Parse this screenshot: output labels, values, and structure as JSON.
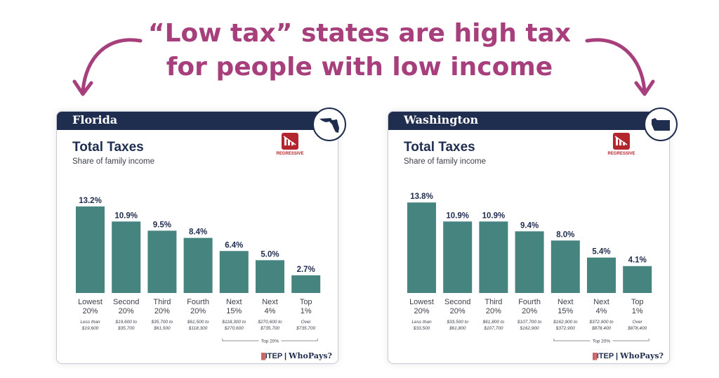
{
  "headline": {
    "line1": "“Low tax” states are high tax",
    "line2": "for people with low income"
  },
  "colors": {
    "headline": "#a63f7c",
    "bar": "#45847f",
    "header_bg": "#1f2d4e",
    "regressive": "#b3262e"
  },
  "icons": [
    "arrow-left-icon",
    "arrow-right-icon",
    "state-map-icon",
    "regressive-icon"
  ],
  "cards": [
    {
      "state": "Florida",
      "title": "Total Taxes",
      "subtitle": "Share of family income",
      "regressive_label": "REGRESSIVE",
      "top20_label": "Top 20%",
      "brand_itep": "ITEP",
      "brand_whopays": "WhoPays?"
    },
    {
      "state": "Washington",
      "title": "Total Taxes",
      "subtitle": "Share of family income",
      "regressive_label": "REGRESSIVE",
      "top20_label": "Top 20%",
      "brand_itep": "ITEP",
      "brand_whopays": "WhoPays?"
    }
  ],
  "chart_data": [
    {
      "type": "bar",
      "title": "Total Taxes",
      "subtitle": "Share of family income",
      "categories": [
        "Lowest 20%",
        "Second 20%",
        "Third 20%",
        "Fourth 20%",
        "Next 15%",
        "Next 4%",
        "Top 1%"
      ],
      "category_lines": [
        [
          "Lowest",
          "20%"
        ],
        [
          "Second",
          "20%"
        ],
        [
          "Third",
          "20%"
        ],
        [
          "Fourth",
          "20%"
        ],
        [
          "Next",
          "15%"
        ],
        [
          "Next",
          "4%"
        ],
        [
          "Top",
          "1%"
        ]
      ],
      "income_ranges": [
        [
          "Less than",
          "$19,600"
        ],
        [
          "$19,600 to",
          "$35,700"
        ],
        [
          "$35,700 to",
          "$61,500"
        ],
        [
          "$61,500 to",
          "$118,300"
        ],
        [
          "$118,300 to",
          "$270,600"
        ],
        [
          "$270,600 to",
          "$735,700"
        ],
        [
          "Over",
          "$735,700"
        ]
      ],
      "values": [
        13.2,
        10.9,
        9.5,
        8.4,
        6.4,
        5.0,
        2.7
      ],
      "value_labels": [
        "13.2%",
        "10.9%",
        "9.5%",
        "8.4%",
        "6.4%",
        "5.0%",
        "2.7%"
      ],
      "ylim": [
        0,
        15
      ]
    },
    {
      "type": "bar",
      "title": "Total Taxes",
      "subtitle": "Share of family income",
      "categories": [
        "Lowest 20%",
        "Second 20%",
        "Third 20%",
        "Fourth 20%",
        "Next 15%",
        "Next 4%",
        "Top 1%"
      ],
      "category_lines": [
        [
          "Lowest",
          "20%"
        ],
        [
          "Second",
          "20%"
        ],
        [
          "Third",
          "20%"
        ],
        [
          "Fourth",
          "20%"
        ],
        [
          "Next",
          "15%"
        ],
        [
          "Next",
          "4%"
        ],
        [
          "Top",
          "1%"
        ]
      ],
      "income_ranges": [
        [
          "Less than",
          "$33,500"
        ],
        [
          "$33,500 to",
          "$61,800"
        ],
        [
          "$61,800 to",
          "$107,700"
        ],
        [
          "$107,700 to",
          "$162,900"
        ],
        [
          "$162,900 to",
          "$372,900"
        ],
        [
          "$372,900 to",
          "$878,400"
        ],
        [
          "Over",
          "$878,400"
        ]
      ],
      "values": [
        13.8,
        10.9,
        10.9,
        9.4,
        8.0,
        5.4,
        4.1
      ],
      "value_labels": [
        "13.8%",
        "10.9%",
        "10.9%",
        "9.4%",
        "8.0%",
        "5.4%",
        "4.1%"
      ],
      "ylim": [
        0,
        15
      ]
    }
  ]
}
